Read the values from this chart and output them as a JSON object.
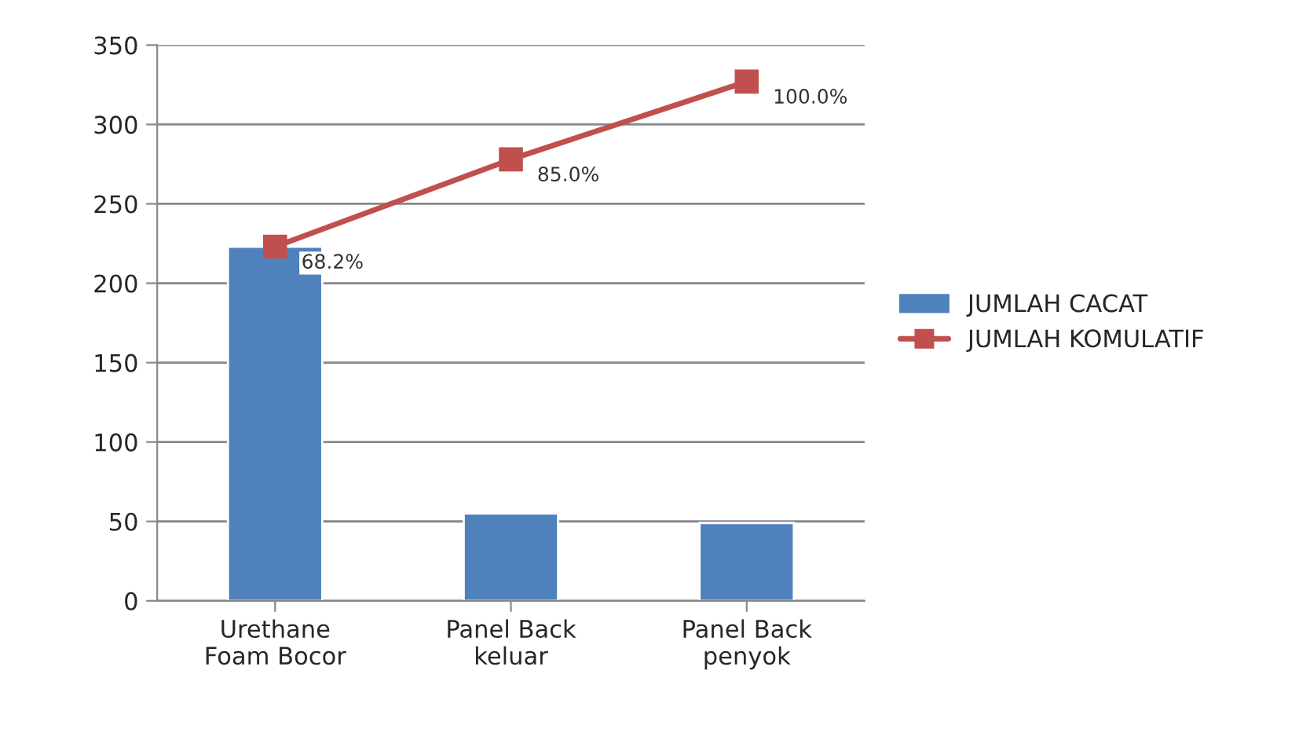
{
  "chart_data": {
    "type": "bar",
    "categories": [
      "Urethane\nFoam Bocor",
      "Panel Back\nkeluar",
      "Panel Back\npenyok"
    ],
    "series": [
      {
        "name": "JUMLAH CACAT",
        "type": "bar",
        "color": "#4f81bd",
        "values": [
          223,
          55,
          49
        ]
      },
      {
        "name": "JUMLAH KOMULATIF",
        "type": "line",
        "color": "#c0504d",
        "values": [
          223,
          278,
          327
        ],
        "marker": "square"
      }
    ],
    "annotations": [
      {
        "text": "68.2%",
        "x": "Urethane\nFoam Bocor",
        "y": 223
      },
      {
        "text": "85.0%",
        "x": "Panel Back\nkeluar",
        "y": 278
      },
      {
        "text": "100.0%",
        "x": "Panel Back\npenyok",
        "y": 327
      }
    ],
    "ylim": [
      0,
      350
    ],
    "yticks": [
      0,
      50,
      100,
      150,
      200,
      250,
      300,
      350
    ],
    "grid": "y",
    "legend": "right"
  }
}
